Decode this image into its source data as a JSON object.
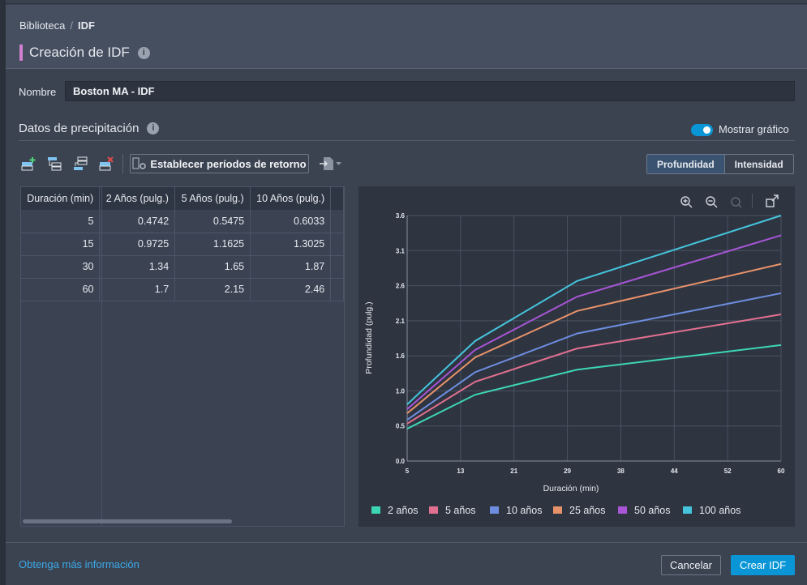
{
  "breadcrumb": {
    "parent": "Biblioteca",
    "separator": "/",
    "current": "IDF"
  },
  "page_title": "Creación de IDF",
  "name_field": {
    "label": "Nombre",
    "value": "Boston MA - IDF"
  },
  "section_title": "Datos de precipitación",
  "show_chart": {
    "label": "Mostrar gráfico",
    "on": true
  },
  "toolbar": {
    "set_return_periods": "Establecer períodos de retorno"
  },
  "mode": {
    "depth": "Profundidad",
    "intensity": "Intensidad",
    "selected": "Profundidad"
  },
  "table": {
    "headers": [
      "Duración (min)",
      "2 Años (pulg.)",
      "5 Años (pulg.)",
      "10 Años (pulg.)"
    ],
    "rows": [
      [
        "5",
        "0.4742",
        "0.5475",
        "0.6033"
      ],
      [
        "15",
        "0.9725",
        "1.1625",
        "1.3025"
      ],
      [
        "30",
        "1.34",
        "1.65",
        "1.87"
      ],
      [
        "60",
        "1.7",
        "2.15",
        "2.46"
      ]
    ]
  },
  "chart_data": {
    "type": "line",
    "xlabel": "Duración (min)",
    "ylabel": "Profundidad (pulg.)",
    "x": [
      5,
      15,
      30,
      60
    ],
    "xlim": [
      5,
      60
    ],
    "ylim": [
      0,
      3.6
    ],
    "xticks": [
      "5",
      "13",
      "21",
      "29",
      "38",
      "44",
      "52",
      "60"
    ],
    "yticks": [
      "0.0",
      "0.5",
      "1.0",
      "1.6",
      "2.1",
      "2.6",
      "3.1",
      "3.6"
    ],
    "grid": true,
    "legend": "bottom",
    "series": [
      {
        "name": "2 años",
        "color": "#3dd6b5",
        "values": [
          0.4742,
          0.9725,
          1.34,
          1.7
        ]
      },
      {
        "name": "5 años",
        "color": "#e0708f",
        "values": [
          0.5475,
          1.1625,
          1.65,
          2.15
        ]
      },
      {
        "name": "10 años",
        "color": "#6d8ee0",
        "values": [
          0.6033,
          1.3025,
          1.87,
          2.46
        ]
      },
      {
        "name": "25 años",
        "color": "#e8926a",
        "values": [
          0.7,
          1.52,
          2.2,
          2.89
        ]
      },
      {
        "name": "50 años",
        "color": "#a855d6",
        "values": [
          0.76,
          1.63,
          2.41,
          3.31
        ]
      },
      {
        "name": "100 años",
        "color": "#45c4dc",
        "values": [
          0.83,
          1.76,
          2.64,
          3.6
        ]
      }
    ]
  },
  "footer": {
    "more_info": "Obtenga más información",
    "cancel": "Cancelar",
    "create": "Crear IDF"
  }
}
